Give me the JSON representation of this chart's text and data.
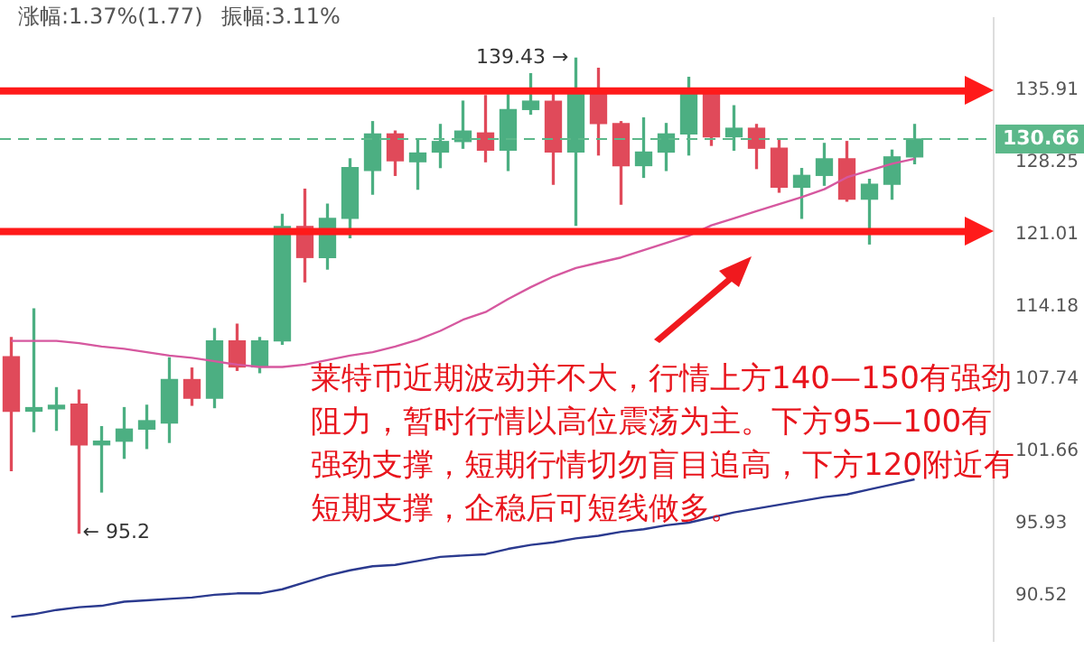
{
  "chart_data": {
    "type": "candlestick",
    "categories": [
      null,
      null,
      null,
      null,
      null,
      null,
      null,
      null,
      null,
      null,
      null,
      null,
      null,
      null,
      null,
      null,
      null,
      null,
      null,
      null,
      null,
      null,
      null,
      null,
      null,
      null,
      null,
      null,
      null,
      null,
      null,
      null,
      null,
      null,
      null,
      null,
      null,
      null,
      null,
      null,
      null,
      null,
      null,
      null
    ],
    "ohlc": [
      [
        109.7,
        111.4,
        100.1,
        105.0
      ],
      [
        105.0,
        114.0,
        103.3,
        105.3
      ],
      [
        105.2,
        107.0,
        103.4,
        105.5
      ],
      [
        105.6,
        106.8,
        95.2,
        102.2
      ],
      [
        102.2,
        103.7,
        98.4,
        102.5
      ],
      [
        102.5,
        105.3,
        101.1,
        103.5
      ],
      [
        103.5,
        105.5,
        101.9,
        104.2
      ],
      [
        104.0,
        109.6,
        102.4,
        107.7
      ],
      [
        107.7,
        108.7,
        105.5,
        106.1
      ],
      [
        106.1,
        112.2,
        105.3,
        111.1
      ],
      [
        111.1,
        112.6,
        108.5,
        108.8
      ],
      [
        108.8,
        111.4,
        108.3,
        111.1
      ],
      [
        111.1,
        123.0,
        110.8,
        121.8
      ],
      [
        121.8,
        125.5,
        116.5,
        118.8
      ],
      [
        118.8,
        124.0,
        117.7,
        122.6
      ],
      [
        122.6,
        128.6,
        120.7,
        127.7
      ],
      [
        127.4,
        132.5,
        125.0,
        131.2
      ],
      [
        131.2,
        131.5,
        126.9,
        128.4
      ],
      [
        128.3,
        130.7,
        125.5,
        129.2
      ],
      [
        129.3,
        132.2,
        127.7,
        130.4
      ],
      [
        130.4,
        134.7,
        129.7,
        131.5
      ],
      [
        131.3,
        135.3,
        128.3,
        129.5
      ],
      [
        129.5,
        135.8,
        127.4,
        133.8
      ],
      [
        133.8,
        137.7,
        133.3,
        134.7
      ],
      [
        134.7,
        135.7,
        126.0,
        129.3
      ],
      [
        129.3,
        139.43,
        121.9,
        135.7
      ],
      [
        135.7,
        138.3,
        129.0,
        132.3
      ],
      [
        132.3,
        132.5,
        124.0,
        127.9
      ],
      [
        127.9,
        132.9,
        126.7,
        129.3
      ],
      [
        129.3,
        132.3,
        127.4,
        131.2
      ],
      [
        131.2,
        137.3,
        129.0,
        135.7
      ],
      [
        135.7,
        135.9,
        130.0,
        130.9
      ],
      [
        130.9,
        134.2,
        129.5,
        131.8
      ],
      [
        131.8,
        132.2,
        127.6,
        129.7
      ],
      [
        129.7,
        130.7,
        125.2,
        125.7
      ],
      [
        125.7,
        127.6,
        122.6,
        126.9
      ],
      [
        126.9,
        130.2,
        125.9,
        128.6
      ],
      [
        128.6,
        130.4,
        124.3,
        124.5
      ],
      [
        124.5,
        126.5,
        120.1,
        126.0
      ],
      [
        126.0,
        129.5,
        124.5,
        128.8
      ],
      [
        128.8,
        132.2,
        128.1,
        130.66
      ],
      null,
      null,
      null
    ],
    "series": [
      {
        "type": "line",
        "color": "#d6589f",
        "values": [
          111.1,
          111.1,
          111.1,
          110.9,
          110.6,
          110.4,
          110.1,
          109.8,
          109.6,
          109.3,
          109.0,
          108.8,
          108.8,
          109.0,
          109.4,
          109.8,
          110.1,
          110.6,
          111.2,
          112.0,
          113.0,
          113.7,
          114.9,
          116.0,
          117.0,
          117.8,
          118.3,
          118.8,
          119.5,
          120.2,
          120.9,
          121.9,
          122.6,
          123.3,
          124.0,
          124.7,
          125.5,
          126.7,
          127.4,
          128.1,
          128.6,
          null,
          null,
          null
        ]
      },
      {
        "type": "line",
        "color": "#2b3a8f",
        "values": [
          89.0,
          89.2,
          89.5,
          89.7,
          89.8,
          90.1,
          90.2,
          90.3,
          90.4,
          90.6,
          90.7,
          90.7,
          91.0,
          91.5,
          92.0,
          92.4,
          92.7,
          92.8,
          93.1,
          93.4,
          93.5,
          93.6,
          94.0,
          94.3,
          94.5,
          94.8,
          95.0,
          95.3,
          95.5,
          95.8,
          96.0,
          96.4,
          96.8,
          97.1,
          97.4,
          97.7,
          98.0,
          98.2,
          98.6,
          99.0,
          99.4,
          null,
          null,
          null
        ]
      }
    ],
    "log": true,
    "ylim": [
      87.3,
      144
    ],
    "yticks": [
      90.52,
      95.93,
      101.66,
      107.74,
      114.18,
      121.01,
      128.25,
      135.91
    ],
    "tick_labels": "y",
    "legend": false,
    "ref_lines": [
      {
        "axis": "y",
        "value": 130.66,
        "label": "130.66",
        "color": "#5cb88a",
        "line_style": "dashed"
      },
      {
        "axis": "y",
        "value": 135.8,
        "color": "#ff1a1a"
      },
      {
        "axis": "y",
        "value": 121.3,
        "color": "#ff1a1a"
      }
    ],
    "annotations": [
      "涨幅:1.37%(1.77)",
      "振幅:3.11%",
      "139.43 →",
      "← 95.2",
      "莱特币近期波动并不大，行情上方140—150有强劲阻力，暂时行情以高位震荡为主。下方95—100有强劲支撑，短期行情切勿盲目追高，下方120附近有短期支撑，企稳后可短线做多。"
    ]
  }
}
